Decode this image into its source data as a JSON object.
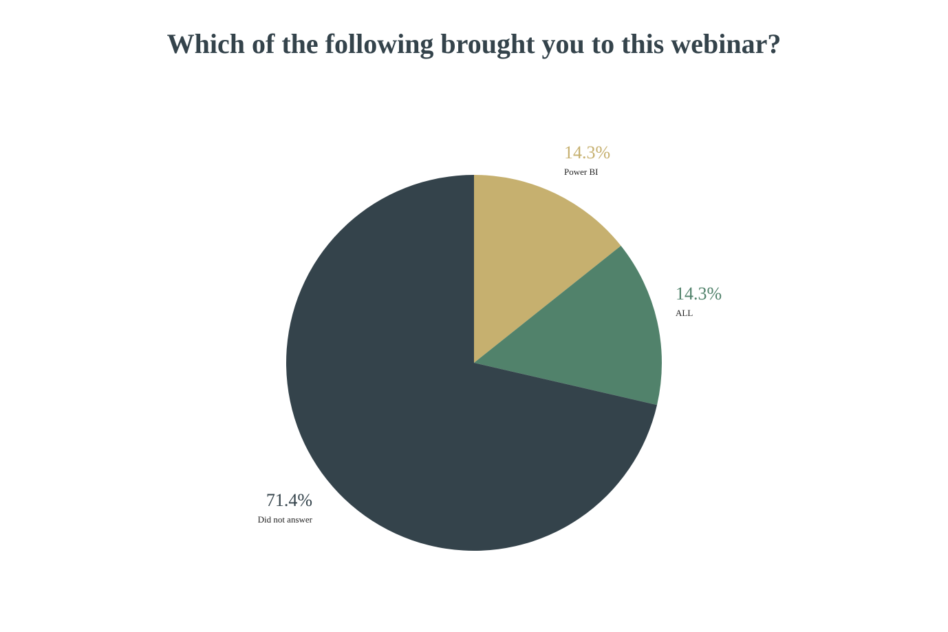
{
  "chart_data": {
    "type": "pie",
    "title": "Which of the following brought you to this webinar?",
    "slices": [
      {
        "label": "Power BI",
        "value": 14.3,
        "display": "14.3%",
        "color": "#c6b06f"
      },
      {
        "label": "ALL",
        "value": 14.3,
        "display": "14.3%",
        "color": "#51826b"
      },
      {
        "label": "Did not answer",
        "value": 71.4,
        "display": "71.4%",
        "color": "#34434b"
      }
    ],
    "start_angle": "12 o'clock",
    "direction": "clockwise",
    "legend": "none; labels beside slices"
  }
}
